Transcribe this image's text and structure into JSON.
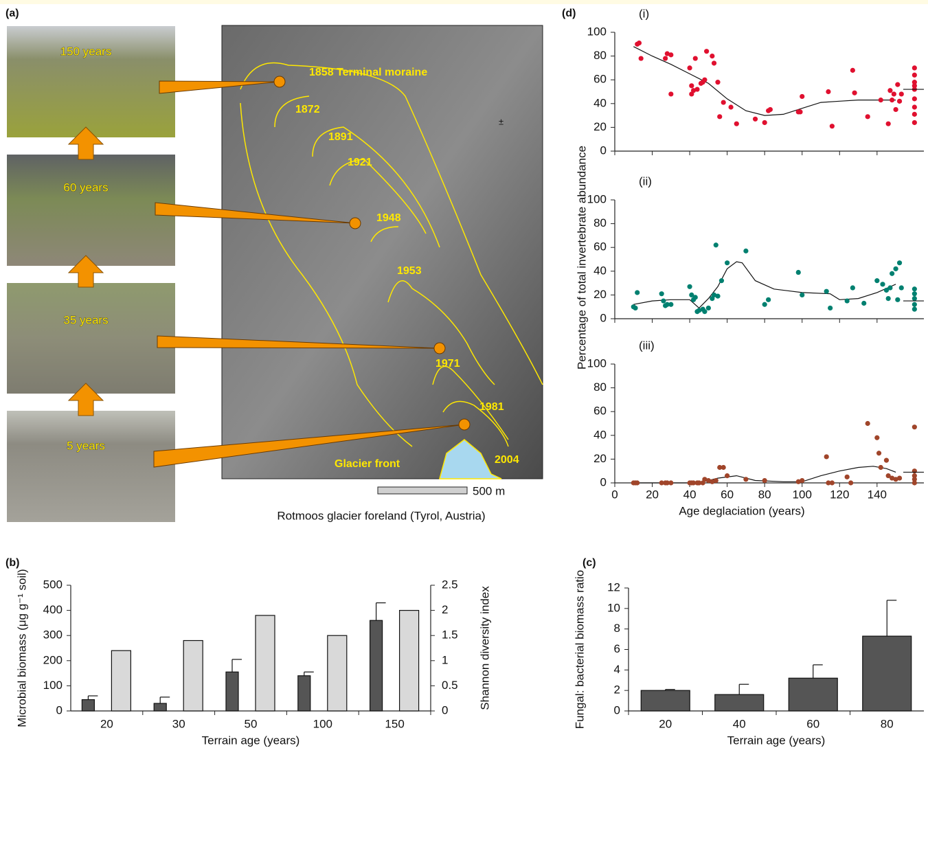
{
  "panel_a": {
    "panel_label": "(a)",
    "photos": [
      "150 years",
      "60 years",
      "35 years",
      "5 years"
    ],
    "map_labels": [
      "1858 Terminal moraine",
      "1872",
      "1891",
      "1921",
      "1948",
      "1953",
      "1971",
      "1981",
      "2004",
      "Glacier front",
      "±"
    ],
    "scale_label": "500 m",
    "caption": "Rotmoos glacier foreland (Tyrol, Austria)"
  },
  "chart_data": [
    {
      "type": "bar",
      "panel_label": "(b)",
      "categories": [
        "20",
        "30",
        "50",
        "100",
        "150"
      ],
      "x_label": "Terrain age (years)",
      "y_label": "Microbial biomass (μg g⁻¹ soil)",
      "y2_label": "Shannon diversity index",
      "ylim": [
        0,
        500
      ],
      "yticks": [
        0,
        100,
        200,
        300,
        400,
        500
      ],
      "y2lim": [
        0,
        2.5
      ],
      "y2ticks": [
        0,
        0.5,
        1,
        1.5,
        2,
        2.5
      ],
      "series": [
        {
          "color": "#555555",
          "values": [
            45,
            30,
            155,
            140,
            360
          ],
          "errors": [
            15,
            25,
            50,
            15,
            70
          ]
        },
        {
          "color": "#d9d9d9",
          "axis": "y2",
          "values": [
            1.2,
            1.4,
            1.9,
            1.5,
            2.0
          ]
        }
      ]
    },
    {
      "type": "bar",
      "panel_label": "(c)",
      "categories": [
        "20",
        "40",
        "60",
        "80"
      ],
      "x_label": "Terrain age (years)",
      "y_label": "Fungal: bacterial biomass ratio",
      "ylim": [
        0,
        12
      ],
      "yticks": [
        0,
        2,
        4,
        6,
        8,
        10,
        12
      ],
      "series": [
        {
          "color": "#555555",
          "values": [
            2.0,
            1.6,
            3.2,
            7.3
          ],
          "errors": [
            0.1,
            1.0,
            1.3,
            3.5
          ]
        }
      ]
    },
    {
      "type": "scatter",
      "panel_label": "(d)",
      "subplot_label": "(i)",
      "color": "#e0102f",
      "xlim": [
        0,
        165
      ],
      "xticks": [
        0,
        20,
        40,
        60,
        80,
        100,
        120,
        140
      ],
      "ylim": [
        0,
        100
      ],
      "yticks": [
        0,
        20,
        40,
        60,
        80,
        100
      ],
      "x": [
        12,
        13,
        14,
        27,
        28,
        30,
        30,
        40,
        41,
        41,
        42,
        43,
        44,
        46,
        47,
        48,
        49,
        52,
        53,
        55,
        56,
        58,
        62,
        65,
        75,
        80,
        82,
        83,
        98,
        99,
        100,
        114,
        116,
        128,
        127,
        135,
        142,
        146,
        147,
        148,
        149,
        150,
        151,
        152,
        153,
        160,
        160,
        160,
        160,
        160,
        160,
        160,
        160,
        160
      ],
      "values": [
        90,
        91,
        78,
        78,
        82,
        81,
        48,
        70,
        55,
        48,
        51,
        78,
        52,
        57,
        58,
        60,
        84,
        80,
        74,
        58,
        29,
        41,
        37,
        23,
        27,
        24,
        34,
        35,
        33,
        33,
        46,
        50,
        21,
        49,
        68,
        29,
        43,
        23,
        51,
        43,
        48,
        35,
        56,
        42,
        48,
        70,
        64,
        58,
        55,
        52,
        44,
        37,
        31,
        24
      ],
      "fit": {
        "x": [
          10,
          20,
          30,
          40,
          50,
          60,
          70,
          80,
          90,
          100,
          110,
          120,
          130,
          140,
          150
        ],
        "values": [
          88,
          80,
          73,
          65,
          57,
          44,
          34,
          30,
          31,
          36,
          41,
          42,
          43,
          43,
          43
        ]
      },
      "median": 52
    },
    {
      "type": "scatter",
      "subplot_label": "(ii)",
      "color": "#008070",
      "y_label": "Percentage of total invertebrate abundance",
      "xlim": [
        0,
        165
      ],
      "xticks": [
        0,
        20,
        40,
        60,
        80,
        100,
        120,
        140
      ],
      "ylim": [
        0,
        100
      ],
      "yticks": [
        0,
        20,
        40,
        60,
        80,
        100
      ],
      "x": [
        10,
        11,
        12,
        25,
        26,
        27,
        28,
        30,
        40,
        41,
        42,
        43,
        44,
        45,
        47,
        48,
        50,
        52,
        53,
        54,
        55,
        57,
        60,
        70,
        80,
        82,
        98,
        100,
        113,
        115,
        124,
        127,
        133,
        140,
        143,
        145,
        146,
        147,
        148,
        150,
        151,
        152,
        153,
        160,
        160,
        160,
        160,
        160
      ],
      "values": [
        10,
        9,
        22,
        21,
        15,
        11,
        12,
        12,
        27,
        20,
        16,
        18,
        6,
        7,
        8,
        6,
        9,
        17,
        20,
        62,
        19,
        32,
        47,
        57,
        12,
        16,
        39,
        20,
        23,
        9,
        15,
        26,
        13,
        32,
        29,
        24,
        17,
        26,
        38,
        42,
        16,
        47,
        26,
        25,
        21,
        17,
        12,
        8
      ],
      "fit": {
        "x": [
          10,
          20,
          30,
          40,
          45,
          50,
          55,
          60,
          65,
          68,
          75,
          85,
          100,
          115,
          120,
          130,
          140,
          150
        ],
        "values": [
          12,
          15,
          16,
          16,
          9,
          17,
          27,
          42,
          48,
          47,
          32,
          25,
          22,
          21,
          16,
          17,
          22,
          29
        ]
      },
      "median": 15
    },
    {
      "type": "scatter",
      "subplot_label": "(iii)",
      "color": "#a0452a",
      "x_label": "Age deglaciation (years)",
      "xlim": [
        0,
        165
      ],
      "xticks": [
        0,
        20,
        40,
        60,
        80,
        100,
        120,
        140
      ],
      "ylim": [
        0,
        100
      ],
      "yticks": [
        0,
        20,
        40,
        60,
        80,
        100
      ],
      "x": [
        10,
        11,
        12,
        25,
        27,
        28,
        30,
        40,
        41,
        42,
        44,
        45,
        47,
        48,
        50,
        52,
        54,
        56,
        58,
        60,
        70,
        80,
        98,
        100,
        113,
        114,
        116,
        124,
        126,
        135,
        140,
        141,
        142,
        145,
        146,
        148,
        150,
        152,
        160,
        160,
        160,
        160,
        160
      ],
      "values": [
        0,
        0,
        0,
        0,
        0,
        0,
        0,
        0,
        0,
        0,
        0,
        0,
        0,
        3,
        2,
        1,
        2,
        13,
        13,
        6,
        3,
        2,
        1,
        2,
        22,
        0,
        0,
        5,
        0,
        50,
        38,
        25,
        13,
        19,
        6,
        4,
        3,
        4,
        47,
        10,
        6,
        3,
        0
      ],
      "fit": {
        "x": [
          10,
          30,
          45,
          55,
          65,
          75,
          90,
          100,
          110,
          120,
          130,
          138,
          145,
          150
        ],
        "values": [
          0,
          0,
          0,
          4,
          6,
          2,
          1,
          1,
          6,
          10,
          13,
          14,
          12,
          9
        ]
      },
      "median": 9
    }
  ]
}
